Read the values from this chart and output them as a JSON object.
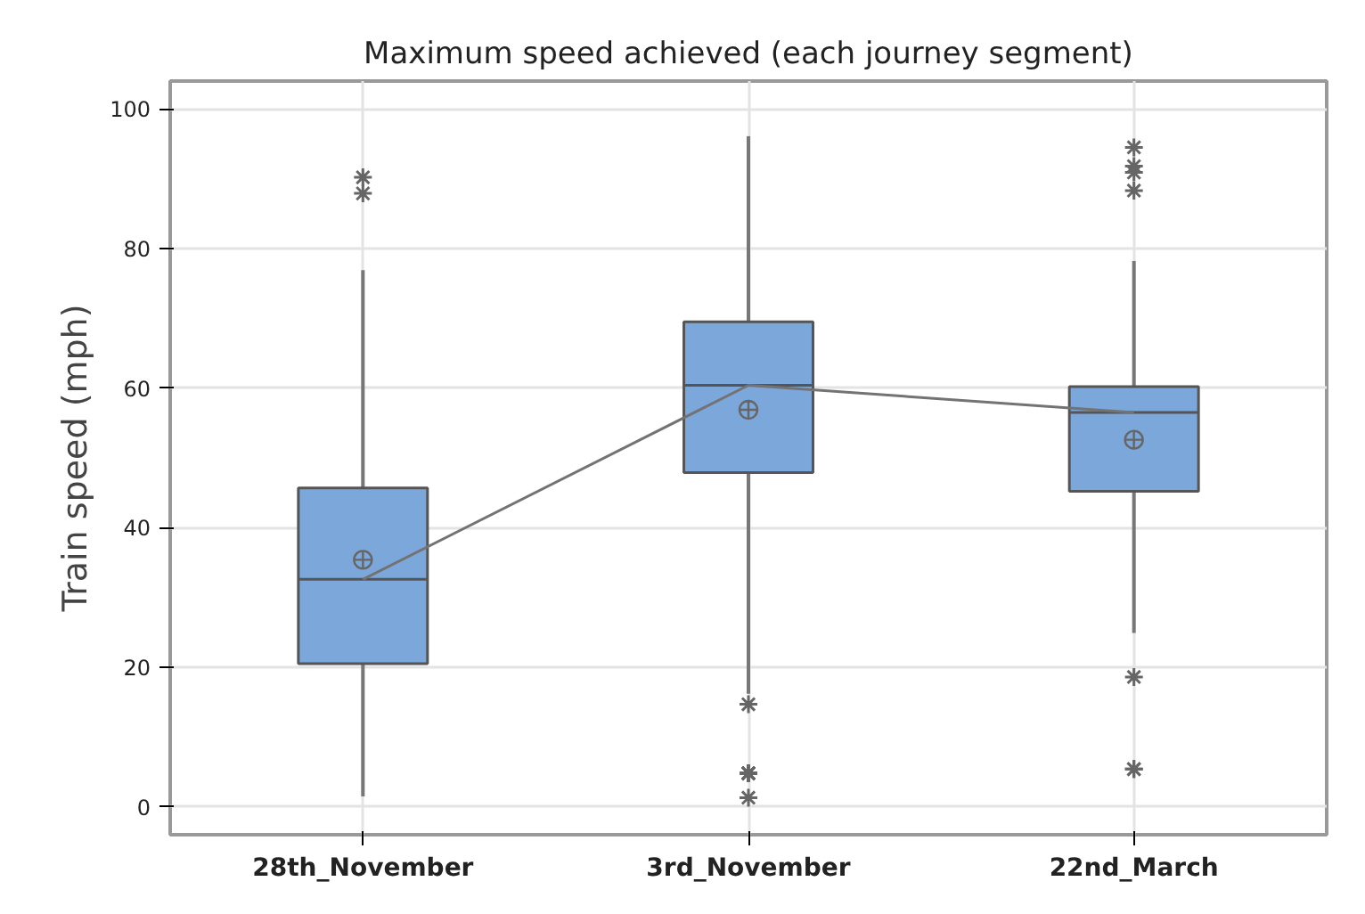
{
  "chart_data": {
    "type": "box",
    "title": "Maximum speed achieved (each journey segment)",
    "ylabel": "Train speed (mph)",
    "categories": [
      "28th_November",
      "3rd_November",
      "22nd_March"
    ],
    "ylim": [
      -4,
      104
    ],
    "yticks": [
      0,
      20,
      40,
      60,
      80,
      100
    ],
    "grid": true,
    "color": "#7ba7db",
    "boxes": [
      {
        "low": 1.5,
        "q1": 20.5,
        "median": 32.6,
        "q3": 45.7,
        "high": 76.9,
        "mean": 35.4,
        "outliers": [
          90.2,
          87.9
        ]
      },
      {
        "low": 16.2,
        "q1": 47.9,
        "median": 60.4,
        "q3": 69.5,
        "high": 96.1,
        "mean": 56.9,
        "outliers": [
          14.7,
          4.8,
          4.8,
          4.8,
          4.8,
          4.8,
          1.3
        ]
      },
      {
        "low": 24.9,
        "q1": 45.2,
        "median": 56.5,
        "q3": 60.2,
        "high": 78.2,
        "mean": 52.6,
        "outliers": [
          94.5,
          91.8,
          90.9,
          88.3,
          18.6,
          5.4,
          5.4
        ]
      }
    ],
    "series": [
      {
        "type": "line",
        "color": "#737373",
        "x": [
          "28th_November",
          "3rd_November",
          "22nd_March"
        ],
        "values": [
          32.6,
          60.4,
          56.5
        ]
      }
    ]
  }
}
